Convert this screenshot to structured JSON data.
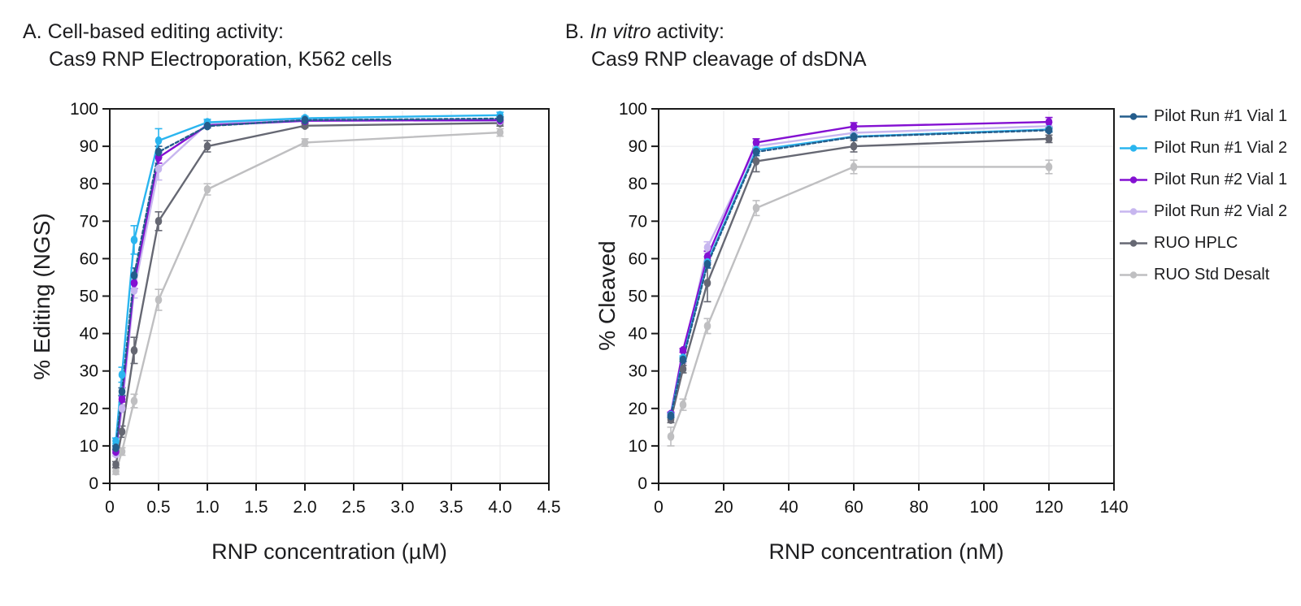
{
  "legend": {
    "items": [
      {
        "label": "Pilot Run #1 Vial 1",
        "color": "#245d8c"
      },
      {
        "label": "Pilot Run #1 Vial 2",
        "color": "#2ab5ef"
      },
      {
        "label": "Pilot Run #2 Vial 1",
        "color": "#8410d2"
      },
      {
        "label": "Pilot Run #2 Vial 2",
        "color": "#c7b6ef"
      },
      {
        "label": "RUO HPLC",
        "color": "#666873"
      },
      {
        "label": "RUO Std Desalt",
        "color": "#bfbfc1"
      }
    ]
  },
  "chart_data": [
    {
      "type": "line",
      "panel": "A",
      "title_prefix": "A. ",
      "title_italic": "",
      "title_rest": "Cell-based editing activity:",
      "title_line2": "Cas9 RNP Electroporation, K562 cells",
      "xlabel": "RNP concentration (µM)",
      "ylabel": "% Editing (NGS)",
      "xlim": [
        0,
        4.5
      ],
      "ylim": [
        0,
        100
      ],
      "xticks": [
        0,
        0.5,
        1.0,
        1.5,
        2.0,
        2.5,
        3.0,
        3.5,
        4.0,
        4.5
      ],
      "xtick_labels": [
        "0",
        "0.5",
        "1.0",
        "1.5",
        "2.0",
        "2.5",
        "3.0",
        "3.5",
        "4.0",
        "4.5"
      ],
      "ytick_step": 10,
      "grid": true,
      "legend_position": "right-outside",
      "x": [
        0.0625,
        0.125,
        0.25,
        0.5,
        1,
        2,
        4
      ],
      "series": [
        {
          "name": "Pilot Run #1 Vial 1",
          "color": "#245d8c",
          "dash": "4 3",
          "values": [
            9.5,
            24.5,
            55.5,
            88.5,
            95.4,
            97.0,
            97.4
          ],
          "errors": [
            0.5,
            1.0,
            2.0,
            1.5,
            0.5,
            0.5,
            0.5
          ]
        },
        {
          "name": "Pilot Run #1 Vial 2",
          "color": "#2ab5ef",
          "dash": null,
          "values": [
            11.3,
            29.0,
            65.0,
            91.5,
            96.4,
            97.5,
            98.3
          ],
          "errors": [
            0.8,
            2.0,
            3.8,
            3.2,
            0.8,
            0.5,
            0.8
          ]
        },
        {
          "name": "Pilot Run #2 Vial 1",
          "color": "#8410d2",
          "dash": null,
          "values": [
            8.5,
            22.5,
            53.5,
            87.0,
            95.6,
            96.8,
            97.0
          ],
          "errors": [
            0.5,
            0.8,
            1.5,
            1.5,
            0.5,
            0.5,
            0.5
          ]
        },
        {
          "name": "Pilot Run #2 Vial 2",
          "color": "#c7b6ef",
          "dash": null,
          "values": [
            7.8,
            20.0,
            51.5,
            84.0,
            96.0,
            97.2,
            96.7
          ],
          "errors": [
            0.5,
            1.0,
            2.0,
            3.0,
            0.8,
            0.5,
            0.8
          ]
        },
        {
          "name": "RUO HPLC",
          "color": "#666873",
          "dash": null,
          "values": [
            5.0,
            13.8,
            35.5,
            70.0,
            90.0,
            95.5,
            96.2
          ],
          "errors": [
            0.8,
            1.5,
            3.5,
            2.5,
            1.5,
            0.5,
            0.8
          ]
        },
        {
          "name": "RUO Std Desalt",
          "color": "#bfbfc1",
          "dash": null,
          "values": [
            3.2,
            8.5,
            22.0,
            49.0,
            78.5,
            91.0,
            93.7
          ],
          "errors": [
            0.8,
            1.0,
            1.8,
            2.8,
            1.5,
            1.0,
            1.0
          ]
        }
      ]
    },
    {
      "type": "line",
      "panel": "B",
      "title_prefix": "B. ",
      "title_italic": "In vitro",
      "title_rest": " activity:",
      "title_line2": "Cas9 RNP cleavage of dsDNA",
      "xlabel": "RNP concentration (nM)",
      "ylabel": "% Cleaved",
      "xlim": [
        0,
        140
      ],
      "ylim": [
        0,
        100
      ],
      "xticks": [
        0,
        20,
        40,
        60,
        80,
        100,
        120,
        140
      ],
      "xtick_labels": [
        "0",
        "20",
        "40",
        "60",
        "80",
        "100",
        "120",
        "140"
      ],
      "ytick_step": 10,
      "grid": true,
      "legend_position": "right-outside",
      "x": [
        3.75,
        7.5,
        15,
        30,
        60,
        120
      ],
      "series": [
        {
          "name": "Pilot Run #1 Vial 1",
          "color": "#245d8c",
          "dash": "4 3",
          "values": [
            18.0,
            33.0,
            58.5,
            88.5,
            92.5,
            94.3
          ],
          "errors": [
            0.5,
            0.5,
            1.0,
            1.0,
            0.5,
            0.5
          ]
        },
        {
          "name": "Pilot Run #1 Vial 2",
          "color": "#2ab5ef",
          "dash": null,
          "values": [
            18.2,
            33.5,
            59.0,
            89.0,
            92.6,
            94.5
          ],
          "errors": [
            0.5,
            0.5,
            1.5,
            1.0,
            0.5,
            0.5
          ]
        },
        {
          "name": "Pilot Run #2 Vial 1",
          "color": "#8410d2",
          "dash": null,
          "values": [
            18.5,
            35.5,
            60.5,
            91.0,
            95.3,
            96.5
          ],
          "errors": [
            0.5,
            0.5,
            1.5,
            1.0,
            1.0,
            1.2
          ]
        },
        {
          "name": "Pilot Run #2 Vial 2",
          "color": "#c7b6ef",
          "dash": null,
          "values": [
            18.3,
            33.0,
            63.0,
            90.0,
            93.6,
            95.4
          ],
          "errors": [
            0.5,
            1.0,
            1.5,
            1.0,
            0.8,
            1.0
          ]
        },
        {
          "name": "RUO HPLC",
          "color": "#666873",
          "dash": null,
          "values": [
            17.0,
            30.5,
            53.5,
            86.0,
            90.0,
            92.0
          ],
          "errors": [
            0.8,
            1.0,
            5.0,
            2.8,
            1.5,
            1.0
          ]
        },
        {
          "name": "RUO Std Desalt",
          "color": "#bfbfc1",
          "dash": null,
          "values": [
            12.5,
            21.0,
            42.0,
            73.5,
            84.5,
            84.5
          ],
          "errors": [
            2.5,
            1.5,
            2.0,
            2.0,
            1.8,
            1.8
          ]
        }
      ]
    }
  ]
}
